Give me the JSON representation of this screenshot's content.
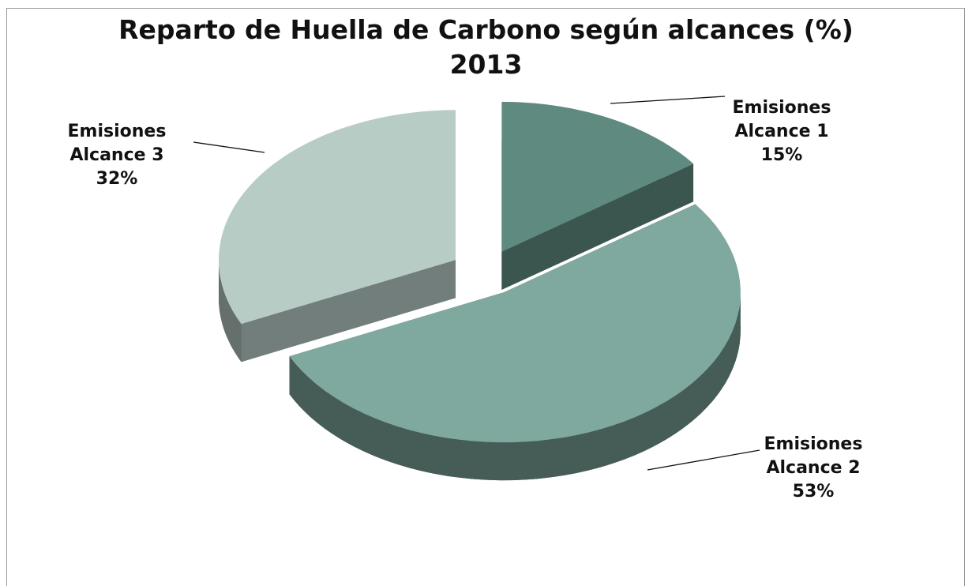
{
  "chart_data": {
    "type": "pie",
    "title": "Reparto de Huella de Carbono según alcances (%)",
    "subtitle": "2013",
    "categories": [
      "Emisiones Alcance 1",
      "Emisiones Alcance 2",
      "Emisiones Alcance 3"
    ],
    "values": [
      15,
      53,
      32
    ],
    "value_labels": [
      "15%",
      "53%",
      "32%"
    ],
    "colors": [
      "#5f8a80",
      "#7fa89e",
      "#b8ccc6"
    ]
  }
}
